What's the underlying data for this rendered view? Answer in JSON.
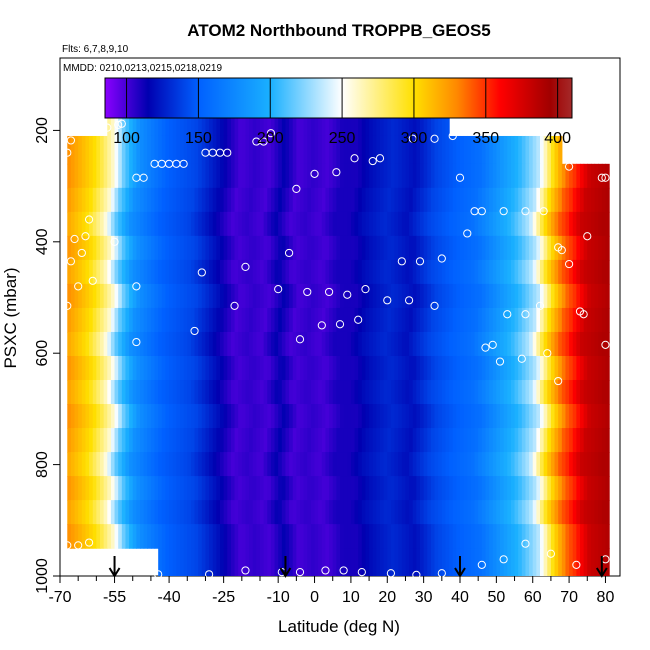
{
  "chart_data": {
    "type": "heatmap",
    "title": "ATOM2 Northbound TROPPB_GEOS5",
    "flights_note": "Flts: 6,7,8,9,10",
    "dates_note": "MMDD: 0210,0213,0215,0218,0219",
    "xlabel": "Latitude (deg N)",
    "ylabel": "PSXC (mbar)",
    "xlim": [
      -70,
      84
    ],
    "ylim": [
      1000,
      70
    ],
    "x_ticks": [
      -70,
      -55,
      -40,
      -25,
      -10,
      0,
      10,
      20,
      30,
      40,
      50,
      60,
      70,
      80
    ],
    "x_tick_labels": [
      "-70",
      "-55",
      "-40",
      "-25",
      "-10",
      "0",
      "10",
      "20",
      "30",
      "40",
      "50",
      "60",
      "70",
      "80"
    ],
    "y_ticks": [
      200,
      400,
      600,
      800,
      1000
    ],
    "y_tick_labels": [
      "200",
      "400",
      "600",
      "800",
      "1000"
    ],
    "colorbar": {
      "min": 85,
      "max": 410,
      "ticks": [
        100,
        150,
        200,
        250,
        300,
        350,
        400
      ],
      "tick_labels": [
        "100",
        "150",
        "200",
        "250",
        "300",
        "350",
        "400"
      ],
      "colors": [
        "#8B00FF",
        "#0000B0",
        "#0060FF",
        "#1AB0FF",
        "#FFFFFF",
        "#FFE000",
        "#FF8800",
        "#FF0000",
        "#A00000",
        "#A52A2A"
      ],
      "color_stops": [
        85,
        115,
        150,
        200,
        250,
        300,
        330,
        360,
        395,
        410
      ]
    },
    "field": {
      "profile_lat": [
        -70,
        -62,
        -57,
        -54,
        -50,
        -42,
        -34,
        -28,
        -22,
        -18,
        -14,
        -10,
        -6,
        -2,
        2,
        6,
        10,
        14,
        20,
        26,
        32,
        38,
        44,
        50,
        55,
        60,
        64,
        68,
        70,
        74,
        80
      ],
      "profile_val": [
        330,
        300,
        260,
        215,
        180,
        150,
        140,
        120,
        100,
        105,
        100,
        115,
        100,
        105,
        100,
        110,
        110,
        120,
        130,
        120,
        140,
        150,
        160,
        185,
        205,
        235,
        300,
        340,
        350,
        380,
        390
      ],
      "pressure_extent": [
        170,
        1000
      ],
      "lat_start_by_level": [
        {
          "top": 170,
          "bottom": 210,
          "lat_min": -57,
          "lat_max": 37
        },
        {
          "top": 210,
          "bottom": 260,
          "lat_min": -68,
          "lat_max": 68
        },
        {
          "top": 260,
          "bottom": 950,
          "lat_min": -68,
          "lat_max": 81
        },
        {
          "top": 950,
          "bottom": 1000,
          "lat_min": -43,
          "lat_max": 81
        }
      ]
    },
    "tropopause_markers_lat": [
      -55,
      -8,
      40,
      79
    ],
    "sample_points": [
      {
        "lat": -57,
        "p": 195
      },
      {
        "lat": -54,
        "p": 190
      },
      {
        "lat": -53,
        "p": 188
      },
      {
        "lat": -67,
        "p": 218
      },
      {
        "lat": -68,
        "p": 240
      },
      {
        "lat": -44,
        "p": 260
      },
      {
        "lat": -42,
        "p": 260
      },
      {
        "lat": -40,
        "p": 260
      },
      {
        "lat": -38,
        "p": 260
      },
      {
        "lat": -36,
        "p": 260
      },
      {
        "lat": -49,
        "p": 285
      },
      {
        "lat": -47,
        "p": 285
      },
      {
        "lat": -30,
        "p": 240
      },
      {
        "lat": -28,
        "p": 240
      },
      {
        "lat": -26,
        "p": 240
      },
      {
        "lat": -24,
        "p": 240
      },
      {
        "lat": -16,
        "p": 220
      },
      {
        "lat": -14,
        "p": 220
      },
      {
        "lat": -12,
        "p": 205
      },
      {
        "lat": -5,
        "p": 305
      },
      {
        "lat": 0,
        "p": 278
      },
      {
        "lat": 6,
        "p": 275
      },
      {
        "lat": 11,
        "p": 250
      },
      {
        "lat": 16,
        "p": 255
      },
      {
        "lat": 18,
        "p": 250
      },
      {
        "lat": 27,
        "p": 215
      },
      {
        "lat": 33,
        "p": 215
      },
      {
        "lat": 38,
        "p": 210
      },
      {
        "lat": 40,
        "p": 285
      },
      {
        "lat": 44,
        "p": 345
      },
      {
        "lat": 46,
        "p": 345
      },
      {
        "lat": 52,
        "p": 345
      },
      {
        "lat": 58,
        "p": 345
      },
      {
        "lat": 63,
        "p": 345
      },
      {
        "lat": 42,
        "p": 385
      },
      {
        "lat": -62,
        "p": 360
      },
      {
        "lat": -66,
        "p": 395
      },
      {
        "lat": -55,
        "p": 400
      },
      {
        "lat": -63,
        "p": 390
      },
      {
        "lat": -67,
        "p": 435
      },
      {
        "lat": -64,
        "p": 420
      },
      {
        "lat": -65,
        "p": 480
      },
      {
        "lat": -61,
        "p": 470
      },
      {
        "lat": -68,
        "p": 515
      },
      {
        "lat": -49,
        "p": 480
      },
      {
        "lat": -31,
        "p": 455
      },
      {
        "lat": -19,
        "p": 445
      },
      {
        "lat": -7,
        "p": 420
      },
      {
        "lat": -22,
        "p": 515
      },
      {
        "lat": -10,
        "p": 485
      },
      {
        "lat": -2,
        "p": 490
      },
      {
        "lat": 4,
        "p": 490
      },
      {
        "lat": 9,
        "p": 495
      },
      {
        "lat": 14,
        "p": 485
      },
      {
        "lat": 20,
        "p": 505
      },
      {
        "lat": 24,
        "p": 435
      },
      {
        "lat": 29,
        "p": 435
      },
      {
        "lat": 35,
        "p": 430
      },
      {
        "lat": 26,
        "p": 505
      },
      {
        "lat": 33,
        "p": 515
      },
      {
        "lat": 2,
        "p": 550
      },
      {
        "lat": 7,
        "p": 548
      },
      {
        "lat": 12,
        "p": 540
      },
      {
        "lat": -33,
        "p": 560
      },
      {
        "lat": -4,
        "p": 575
      },
      {
        "lat": -49,
        "p": 580
      },
      {
        "lat": 53,
        "p": 530
      },
      {
        "lat": 58,
        "p": 530
      },
      {
        "lat": 62,
        "p": 515
      },
      {
        "lat": 67,
        "p": 410
      },
      {
        "lat": 68,
        "p": 415
      },
      {
        "lat": 70,
        "p": 440
      },
      {
        "lat": 75,
        "p": 390
      },
      {
        "lat": 73,
        "p": 525
      },
      {
        "lat": 74,
        "p": 530
      },
      {
        "lat": 47,
        "p": 590
      },
      {
        "lat": 49,
        "p": 585
      },
      {
        "lat": 51,
        "p": 615
      },
      {
        "lat": 57,
        "p": 610
      },
      {
        "lat": 64,
        "p": 600
      },
      {
        "lat": 67,
        "p": 650
      },
      {
        "lat": 80,
        "p": 585
      },
      {
        "lat": -68,
        "p": 945
      },
      {
        "lat": -65,
        "p": 945
      },
      {
        "lat": -62,
        "p": 940
      },
      {
        "lat": -43,
        "p": 997
      },
      {
        "lat": -29,
        "p": 997
      },
      {
        "lat": -19,
        "p": 990
      },
      {
        "lat": -9,
        "p": 993
      },
      {
        "lat": -4,
        "p": 993
      },
      {
        "lat": 3,
        "p": 990
      },
      {
        "lat": 8,
        "p": 990
      },
      {
        "lat": 13,
        "p": 993
      },
      {
        "lat": 21,
        "p": 995
      },
      {
        "lat": 28,
        "p": 998
      },
      {
        "lat": 35,
        "p": 995
      },
      {
        "lat": 46,
        "p": 980
      },
      {
        "lat": 52,
        "p": 970
      },
      {
        "lat": 58,
        "p": 942
      },
      {
        "lat": 65,
        "p": 960
      },
      {
        "lat": 72,
        "p": 980
      },
      {
        "lat": 80,
        "p": 970
      },
      {
        "lat": 70,
        "p": 265
      },
      {
        "lat": 80,
        "p": 285
      },
      {
        "lat": 79,
        "p": 285
      }
    ]
  }
}
